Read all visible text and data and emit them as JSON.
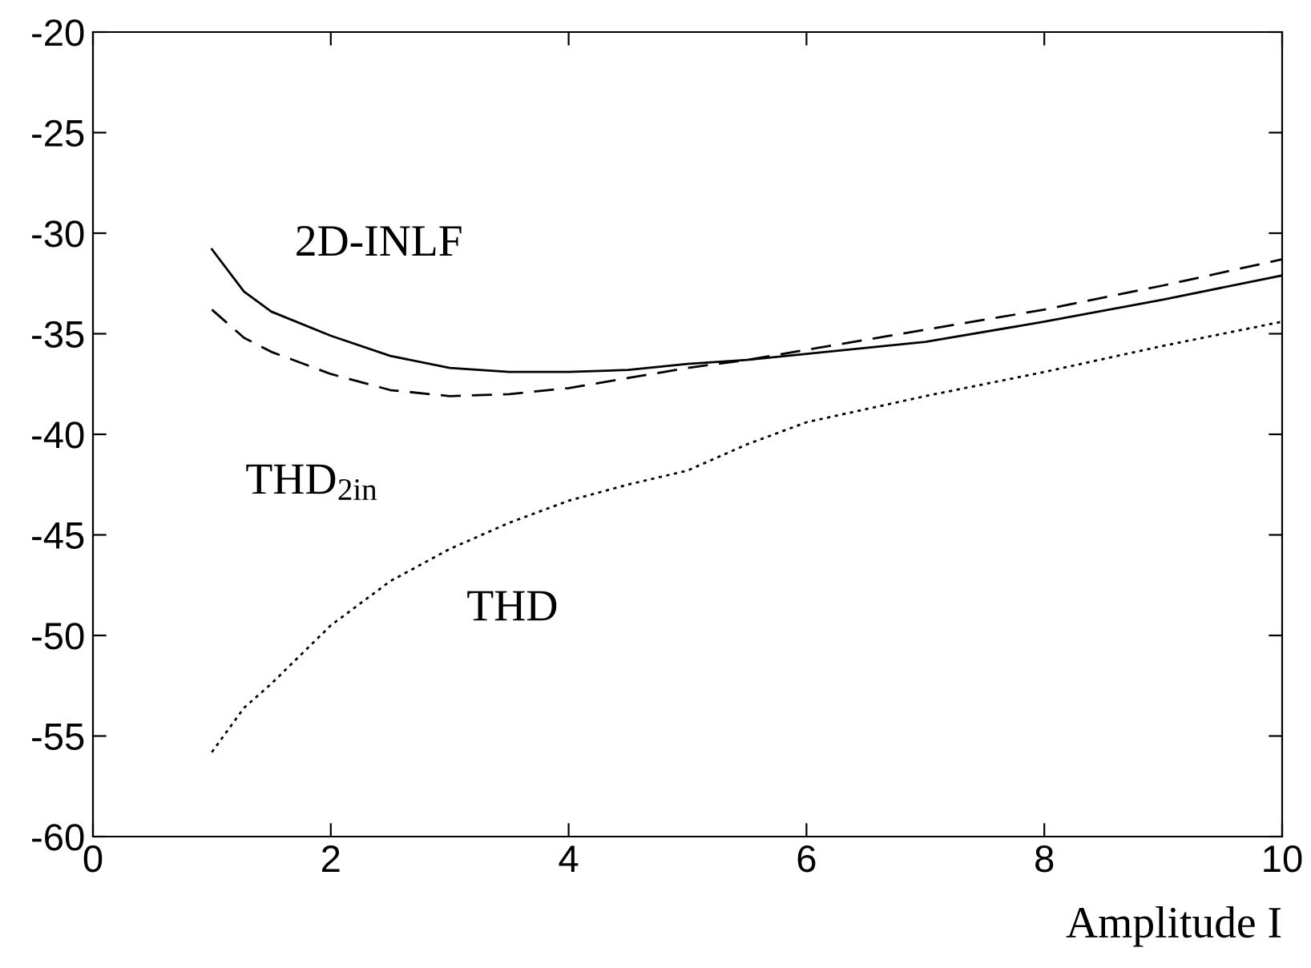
{
  "chart_data": {
    "type": "line",
    "xlabel": "Amplitude I",
    "xlim": [
      0,
      10
    ],
    "ylim": [
      -60,
      -20
    ],
    "xticks": [
      0,
      2,
      4,
      6,
      8,
      10
    ],
    "yticks": [
      -60,
      -55,
      -50,
      -45,
      -40,
      -35,
      -30,
      -25,
      -20
    ],
    "grid": false,
    "legend": false,
    "x": [
      1,
      1.27,
      1.5,
      2,
      2.5,
      3,
      3.5,
      4,
      4.5,
      5,
      5.5,
      6,
      7,
      8,
      9,
      10
    ],
    "series": [
      {
        "name": "2D-INLF",
        "color": "#000000",
        "line_style": "solid",
        "values": [
          -30.8,
          -32.9,
          -33.9,
          -35.1,
          -36.1,
          -36.7,
          -36.9,
          -36.9,
          -36.8,
          -36.5,
          -36.3,
          -36.0,
          -35.4,
          -34.4,
          -33.3,
          -32.1
        ]
      },
      {
        "name": "THD$_{2in}$",
        "color": "#000000",
        "line_style": "dashed",
        "values": [
          -33.8,
          -35.2,
          -35.9,
          -37.0,
          -37.8,
          -38.1,
          -38.0,
          -37.7,
          -37.2,
          -36.7,
          -36.3,
          -35.8,
          -34.8,
          -33.8,
          -32.6,
          -31.3
        ]
      },
      {
        "name": "THD",
        "color": "#000000",
        "line_style": "dotted",
        "values": [
          -55.8,
          -53.6,
          -52.4,
          -49.5,
          -47.3,
          -45.7,
          -44.4,
          -43.3,
          -42.5,
          -41.8,
          -40.5,
          -39.4,
          -38.1,
          -36.9,
          -35.6,
          -34.4
        ]
      }
    ]
  }
}
